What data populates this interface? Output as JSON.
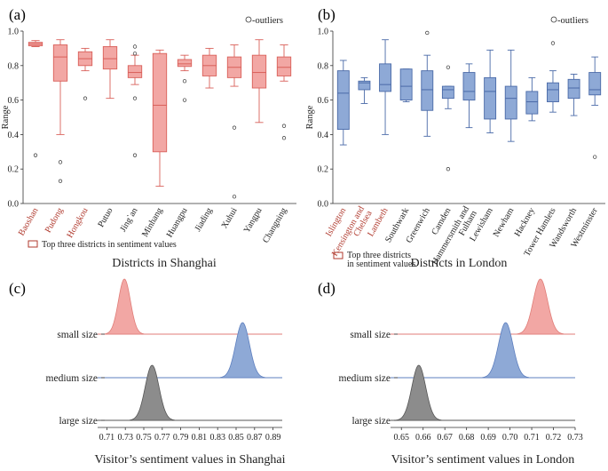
{
  "panel_labels": [
    "(a)",
    "(b)",
    "(c)",
    "(d)"
  ],
  "chart_data": [
    {
      "id": "a",
      "type": "box",
      "xlabel": "Districts in Shanghai",
      "ylabel": "Range",
      "ylim": [
        0.0,
        1.0
      ],
      "yticks": [
        "0.0",
        "0.2",
        "0.4",
        "0.6",
        "0.8",
        "1.0"
      ],
      "ytick_values": [
        0.0,
        0.2,
        0.4,
        0.6,
        0.8,
        1.0
      ],
      "legend_outliers": "-outliers",
      "legend_top3": "Top three districts in sentiment values",
      "colors": {
        "fill": "#f2a7a4",
        "edge": "#d9605a",
        "highlight_label": "#b03a2e"
      },
      "categories": [
        "Baoshan",
        "Pudong",
        "Hongkou",
        "Putuo",
        "Jing`an",
        "Minhang",
        "Huangpu",
        "Jiading",
        "Xuhui",
        "Yangpu",
        "Changning"
      ],
      "highlighted": [
        true,
        true,
        true,
        false,
        false,
        false,
        false,
        false,
        false,
        false,
        false
      ],
      "boxes": [
        {
          "min": 0.91,
          "q1": 0.915,
          "median": 0.925,
          "q3": 0.935,
          "max": 0.945,
          "outliers": [
            0.28
          ]
        },
        {
          "min": 0.4,
          "q1": 0.71,
          "median": 0.85,
          "q3": 0.92,
          "max": 0.95,
          "outliers": [
            0.24,
            0.13
          ]
        },
        {
          "min": 0.77,
          "q1": 0.8,
          "median": 0.84,
          "q3": 0.88,
          "max": 0.9,
          "outliers": [
            0.61
          ]
        },
        {
          "min": 0.61,
          "q1": 0.78,
          "median": 0.84,
          "q3": 0.91,
          "max": 0.95,
          "outliers": []
        },
        {
          "min": 0.69,
          "q1": 0.73,
          "median": 0.76,
          "q3": 0.8,
          "max": 0.86,
          "outliers": [
            0.91,
            0.87,
            0.61,
            0.28
          ]
        },
        {
          "min": 0.1,
          "q1": 0.3,
          "median": 0.57,
          "q3": 0.87,
          "max": 0.89,
          "outliers": []
        },
        {
          "min": 0.77,
          "q1": 0.795,
          "median": 0.81,
          "q3": 0.835,
          "max": 0.86,
          "outliers": [
            0.71,
            0.6
          ]
        },
        {
          "min": 0.67,
          "q1": 0.74,
          "median": 0.8,
          "q3": 0.86,
          "max": 0.9,
          "outliers": []
        },
        {
          "min": 0.68,
          "q1": 0.73,
          "median": 0.79,
          "q3": 0.85,
          "max": 0.92,
          "outliers": [
            0.44,
            0.04
          ]
        },
        {
          "min": 0.47,
          "q1": 0.67,
          "median": 0.76,
          "q3": 0.86,
          "max": 0.95,
          "outliers": []
        },
        {
          "min": 0.71,
          "q1": 0.74,
          "median": 0.79,
          "q3": 0.85,
          "max": 0.92,
          "outliers": [
            0.45,
            0.38
          ]
        }
      ]
    },
    {
      "id": "b",
      "type": "box",
      "xlabel": "Districts in London",
      "ylabel": "Range",
      "ylim": [
        0.0,
        1.0
      ],
      "yticks": [
        "0.0",
        "0.2",
        "0.4",
        "0.6",
        "0.8",
        "1.0"
      ],
      "ytick_values": [
        0.0,
        0.2,
        0.4,
        0.6,
        0.8,
        1.0
      ],
      "legend_outliers": "-outliers",
      "legend_top3_line1": "Top three districts",
      "legend_top3_line2": "in sentiment values",
      "colors": {
        "fill": "#8ea9d6",
        "edge": "#4a6aa8",
        "highlight_label": "#b03a2e"
      },
      "categories": [
        "Islington",
        "Kensington and Chelsea",
        "Lambeth",
        "Southwark",
        "Greenwich",
        "Camden",
        "Hammersmith and Fulham",
        "Lewisham",
        "Newham",
        "Hackney",
        "Tower Hamlets",
        "Wandsworth",
        "Westminster"
      ],
      "label_line1": [
        "Islington",
        "Kensington and",
        "Lambeth",
        "Southwark",
        "Greenwich",
        "Camden",
        "Hammersmith and",
        "Lewisham",
        "Newham",
        "Hackney",
        "Tower Hamlets",
        "Wandsworth",
        "Westminster"
      ],
      "label_line2": [
        "",
        "Chelsea",
        "",
        "",
        "",
        "",
        "Fulham",
        "",
        "",
        "",
        "",
        "",
        ""
      ],
      "highlighted": [
        true,
        true,
        true,
        false,
        false,
        false,
        false,
        false,
        false,
        false,
        false,
        false,
        false
      ],
      "boxes": [
        {
          "min": 0.34,
          "q1": 0.43,
          "median": 0.64,
          "q3": 0.77,
          "max": 0.83,
          "outliers": []
        },
        {
          "min": 0.58,
          "q1": 0.66,
          "median": 0.7,
          "q3": 0.71,
          "max": 0.73,
          "outliers": []
        },
        {
          "min": 0.4,
          "q1": 0.65,
          "median": 0.69,
          "q3": 0.81,
          "max": 0.95,
          "outliers": []
        },
        {
          "min": 0.59,
          "q1": 0.6,
          "median": 0.68,
          "q3": 0.78,
          "max": 0.78,
          "outliers": []
        },
        {
          "min": 0.39,
          "q1": 0.54,
          "median": 0.66,
          "q3": 0.77,
          "max": 0.86,
          "outliers": [
            0.99
          ]
        },
        {
          "min": 0.55,
          "q1": 0.61,
          "median": 0.66,
          "q3": 0.68,
          "max": 0.68,
          "outliers": [
            0.79,
            0.2
          ]
        },
        {
          "min": 0.44,
          "q1": 0.6,
          "median": 0.65,
          "q3": 0.76,
          "max": 0.81,
          "outliers": []
        },
        {
          "min": 0.41,
          "q1": 0.49,
          "median": 0.65,
          "q3": 0.73,
          "max": 0.89,
          "outliers": []
        },
        {
          "min": 0.36,
          "q1": 0.49,
          "median": 0.61,
          "q3": 0.68,
          "max": 0.89,
          "outliers": []
        },
        {
          "min": 0.48,
          "q1": 0.52,
          "median": 0.59,
          "q3": 0.65,
          "max": 0.73,
          "outliers": []
        },
        {
          "min": 0.53,
          "q1": 0.59,
          "median": 0.66,
          "q3": 0.7,
          "max": 0.77,
          "outliers": [
            0.93
          ]
        },
        {
          "min": 0.51,
          "q1": 0.61,
          "median": 0.67,
          "q3": 0.72,
          "max": 0.75,
          "outliers": []
        },
        {
          "min": 0.57,
          "q1": 0.63,
          "median": 0.66,
          "q3": 0.76,
          "max": 0.85,
          "outliers": [
            0.27
          ]
        }
      ]
    },
    {
      "id": "c",
      "type": "ridgeline",
      "xlabel": "Visitor’s sentiment values in Shanghai",
      "xlim": [
        0.7,
        0.9
      ],
      "xticks": [
        "0.71",
        "0.73",
        "0.75",
        "0.77",
        "0.79",
        "0.81",
        "0.83",
        "0.85",
        "0.87",
        "0.89"
      ],
      "xtick_values": [
        0.71,
        0.73,
        0.75,
        0.77,
        0.79,
        0.81,
        0.83,
        0.85,
        0.87,
        0.89
      ],
      "series": [
        {
          "name": "small size",
          "mean": 0.729,
          "sd": 0.0065,
          "color": "#f2a7a4",
          "edge": "#e07d78"
        },
        {
          "name": "medium size",
          "mean": 0.857,
          "sd": 0.0075,
          "color": "#8ea9d6",
          "edge": "#5d7fbf"
        },
        {
          "name": "large size",
          "mean": 0.759,
          "sd": 0.0075,
          "color": "#8c8c8c",
          "edge": "#555555"
        }
      ]
    },
    {
      "id": "d",
      "type": "ridgeline",
      "xlabel": "Visitor’s sentiment values in London",
      "xlim": [
        0.645,
        0.73
      ],
      "xticks": [
        "0.65",
        "0.66",
        "0.67",
        "0.68",
        "0.69",
        "0.70",
        "0.71",
        "0.72",
        "0.73"
      ],
      "xtick_values": [
        0.65,
        0.66,
        0.67,
        0.68,
        0.69,
        0.7,
        0.71,
        0.72,
        0.73
      ],
      "series": [
        {
          "name": "small size",
          "mean": 0.714,
          "sd": 0.0033,
          "color": "#f2a7a4",
          "edge": "#e07d78"
        },
        {
          "name": "medium size",
          "mean": 0.698,
          "sd": 0.0033,
          "color": "#8ea9d6",
          "edge": "#5d7fbf"
        },
        {
          "name": "large size",
          "mean": 0.658,
          "sd": 0.0032,
          "color": "#8c8c8c",
          "edge": "#555555"
        }
      ]
    }
  ]
}
